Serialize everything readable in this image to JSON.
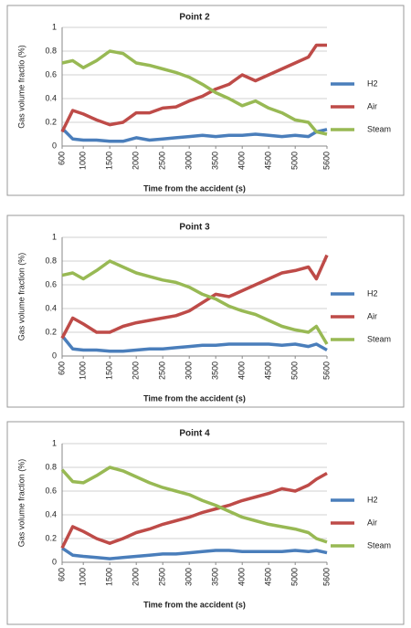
{
  "chart_data": [
    {
      "type": "line",
      "title": "Point 2",
      "x_label": "Time from  the accident  (s)",
      "y_label": "Gas volume fractio (%)",
      "x": [
        600,
        800,
        1000,
        1250,
        1500,
        1750,
        2000,
        2250,
        2500,
        2750,
        3000,
        3250,
        3500,
        3750,
        4000,
        4250,
        4500,
        4750,
        5000,
        5250,
        5400,
        5600
      ],
      "series": [
        {
          "name": "H2",
          "color": "#4a7ebb",
          "values": [
            0.15,
            0.06,
            0.05,
            0.05,
            0.04,
            0.04,
            0.07,
            0.05,
            0.06,
            0.07,
            0.08,
            0.09,
            0.08,
            0.09,
            0.09,
            0.1,
            0.09,
            0.08,
            0.09,
            0.08,
            0.12,
            0.14
          ]
        },
        {
          "name": "Air",
          "color": "#be4b48",
          "values": [
            0.12,
            0.3,
            0.27,
            0.22,
            0.18,
            0.2,
            0.28,
            0.28,
            0.32,
            0.33,
            0.38,
            0.42,
            0.48,
            0.52,
            0.6,
            0.55,
            0.6,
            0.65,
            0.7,
            0.75,
            0.85,
            0.85
          ]
        },
        {
          "name": "Steam",
          "color": "#98b954",
          "values": [
            0.7,
            0.72,
            0.66,
            0.72,
            0.8,
            0.78,
            0.7,
            0.68,
            0.65,
            0.62,
            0.58,
            0.52,
            0.45,
            0.4,
            0.34,
            0.38,
            0.32,
            0.28,
            0.22,
            0.2,
            0.12,
            0.1
          ]
        }
      ],
      "xlim": [
        600,
        5600
      ],
      "xticks": [
        600,
        1000,
        1500,
        2000,
        2500,
        3000,
        3500,
        4000,
        4500,
        5000,
        5600
      ],
      "ylim": [
        0,
        1
      ],
      "yticks": [
        0,
        0.2,
        0.4,
        0.6,
        0.8,
        1
      ],
      "grid": true,
      "legend": "right"
    },
    {
      "type": "line",
      "title": "Point 3",
      "x_label": "Time from  the accident  (s)",
      "y_label": "Gas volume fraction (%)",
      "x": [
        600,
        800,
        1000,
        1250,
        1500,
        1750,
        2000,
        2250,
        2500,
        2750,
        3000,
        3250,
        3500,
        3750,
        4000,
        4250,
        4500,
        4750,
        5000,
        5250,
        5400,
        5600
      ],
      "series": [
        {
          "name": "H2",
          "color": "#4a7ebb",
          "values": [
            0.17,
            0.06,
            0.05,
            0.05,
            0.04,
            0.04,
            0.05,
            0.06,
            0.06,
            0.07,
            0.08,
            0.09,
            0.09,
            0.1,
            0.1,
            0.1,
            0.1,
            0.09,
            0.1,
            0.08,
            0.1,
            0.05
          ]
        },
        {
          "name": "Air",
          "color": "#be4b48",
          "values": [
            0.15,
            0.32,
            0.27,
            0.2,
            0.2,
            0.25,
            0.28,
            0.3,
            0.32,
            0.34,
            0.38,
            0.45,
            0.52,
            0.5,
            0.55,
            0.6,
            0.65,
            0.7,
            0.72,
            0.75,
            0.65,
            0.85
          ]
        },
        {
          "name": "Steam",
          "color": "#98b954",
          "values": [
            0.68,
            0.7,
            0.65,
            0.72,
            0.8,
            0.75,
            0.7,
            0.67,
            0.64,
            0.62,
            0.58,
            0.52,
            0.48,
            0.42,
            0.38,
            0.35,
            0.3,
            0.25,
            0.22,
            0.2,
            0.25,
            0.1
          ]
        }
      ],
      "xlim": [
        600,
        5600
      ],
      "xticks": [
        600,
        1000,
        1500,
        2000,
        2500,
        3000,
        3500,
        4000,
        4500,
        5000,
        5600
      ],
      "ylim": [
        0,
        1
      ],
      "yticks": [
        0,
        0.2,
        0.4,
        0.6,
        0.8,
        1
      ],
      "grid": true,
      "legend": "right"
    },
    {
      "type": "line",
      "title": "Point 4",
      "x_label": "Time from  the accident  (s)",
      "y_label": "Gas volume fraction (%)",
      "x": [
        600,
        800,
        1000,
        1250,
        1500,
        1750,
        2000,
        2250,
        2500,
        2750,
        3000,
        3250,
        3500,
        3750,
        4000,
        4250,
        4500,
        4750,
        5000,
        5250,
        5400,
        5600
      ],
      "series": [
        {
          "name": "H2",
          "color": "#4a7ebb",
          "values": [
            0.12,
            0.06,
            0.05,
            0.04,
            0.03,
            0.04,
            0.05,
            0.06,
            0.07,
            0.07,
            0.08,
            0.09,
            0.1,
            0.1,
            0.09,
            0.09,
            0.09,
            0.09,
            0.1,
            0.09,
            0.1,
            0.08
          ]
        },
        {
          "name": "Air",
          "color": "#be4b48",
          "values": [
            0.12,
            0.3,
            0.26,
            0.2,
            0.16,
            0.2,
            0.25,
            0.28,
            0.32,
            0.35,
            0.38,
            0.42,
            0.45,
            0.48,
            0.52,
            0.55,
            0.58,
            0.62,
            0.6,
            0.65,
            0.7,
            0.75
          ]
        },
        {
          "name": "Steam",
          "color": "#98b954",
          "values": [
            0.78,
            0.68,
            0.67,
            0.73,
            0.8,
            0.77,
            0.72,
            0.67,
            0.63,
            0.6,
            0.57,
            0.52,
            0.48,
            0.43,
            0.38,
            0.35,
            0.32,
            0.3,
            0.28,
            0.25,
            0.2,
            0.17
          ]
        }
      ],
      "xlim": [
        600,
        5600
      ],
      "xticks": [
        600,
        1000,
        1500,
        2000,
        2500,
        3000,
        3500,
        4000,
        4500,
        5000,
        5600
      ],
      "ylim": [
        0,
        1
      ],
      "yticks": [
        0,
        0.2,
        0.4,
        0.6,
        0.8,
        1
      ],
      "grid": true,
      "legend": "right"
    }
  ]
}
